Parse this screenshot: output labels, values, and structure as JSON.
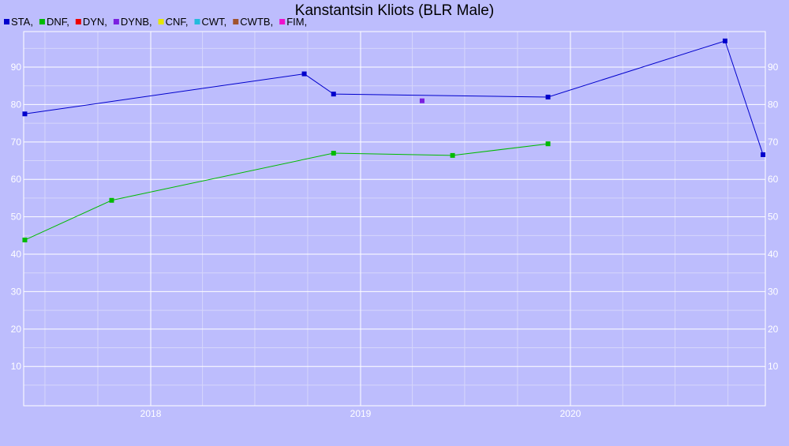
{
  "chart_data": {
    "type": "line",
    "title": "Kanstantsin Kliots (BLR Male)",
    "legend": [
      {
        "label": "STA,",
        "color": "#0000cc"
      },
      {
        "label": "DNF,",
        "color": "#00bb00"
      },
      {
        "label": "DYN,",
        "color": "#ee0000"
      },
      {
        "label": "DYNB,",
        "color": "#7a1fe0"
      },
      {
        "label": "CNF,",
        "color": "#e6e600"
      },
      {
        "label": "CWT,",
        "color": "#22bbdd"
      },
      {
        "label": "CWTB,",
        "color": "#a0522d"
      },
      {
        "label": "FIM,",
        "color": "#ee11cc"
      }
    ],
    "legend_placement": "top-left",
    "x_axis": {
      "type": "date",
      "range": [
        "2017-05-25",
        "2020-12-05"
      ],
      "ticks": [
        "2018-01-01",
        "2019-01-01",
        "2020-01-01"
      ],
      "tick_labels": [
        "2018",
        "2019",
        "2020"
      ]
    },
    "y_axis": {
      "range": [
        -0.5,
        99.5
      ],
      "ticks": [
        10,
        20,
        30,
        40,
        50,
        60,
        70,
        80,
        90
      ],
      "tick_labels": [
        "10",
        "20",
        "30",
        "40",
        "50",
        "60",
        "70",
        "80",
        "90"
      ],
      "labels_on": "both sides"
    },
    "grid": true,
    "series": [
      {
        "name": "STA",
        "color": "#0000cc",
        "connected": true,
        "points": [
          {
            "x": "2017-05-27",
            "y": 77.5
          },
          {
            "x": "2018-09-25",
            "y": 88.2
          },
          {
            "x": "2018-11-15",
            "y": 82.8
          },
          {
            "x": "2019-11-23",
            "y": 82.0
          },
          {
            "x": "2020-09-26",
            "y": 97.0
          },
          {
            "x": "2020-12-01",
            "y": 66.6
          }
        ]
      },
      {
        "name": "DNF",
        "color": "#00bb00",
        "connected": true,
        "points": [
          {
            "x": "2017-05-27",
            "y": 43.8
          },
          {
            "x": "2017-10-25",
            "y": 54.4
          },
          {
            "x": "2018-11-15",
            "y": 67.0
          },
          {
            "x": "2019-06-10",
            "y": 66.4
          },
          {
            "x": "2019-11-23",
            "y": 69.5
          }
        ]
      },
      {
        "name": "DYNB",
        "color": "#7a1fe0",
        "connected": false,
        "points": [
          {
            "x": "2019-04-18",
            "y": 81.0
          }
        ]
      }
    ]
  }
}
